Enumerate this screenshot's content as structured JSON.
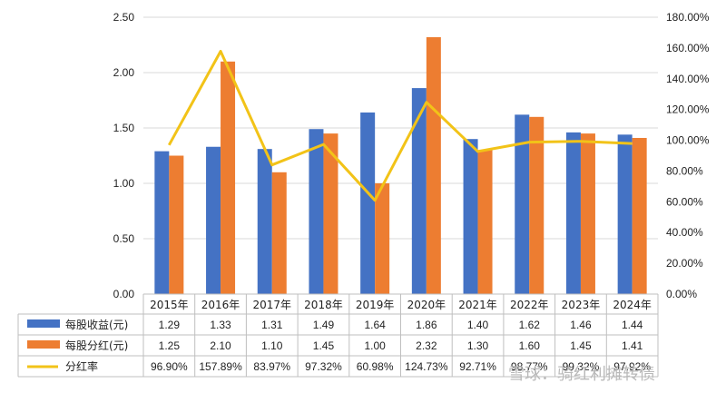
{
  "chart_data": {
    "type": "bar",
    "categories": [
      "2015年",
      "2016年",
      "2017年",
      "2018年",
      "2019年",
      "2020年",
      "2021年",
      "2022年",
      "2023年",
      "2024年"
    ],
    "series": [
      {
        "name": "每股收益(元)",
        "type": "bar",
        "axis": "left",
        "color": "#4472C4",
        "values": [
          1.29,
          1.33,
          1.31,
          1.49,
          1.64,
          1.86,
          1.4,
          1.62,
          1.46,
          1.44
        ],
        "labels": [
          "1.29",
          "1.33",
          "1.31",
          "1.49",
          "1.64",
          "1.86",
          "1.40",
          "1.62",
          "1.46",
          "1.44"
        ]
      },
      {
        "name": "每股分红(元)",
        "type": "bar",
        "axis": "left",
        "color": "#ED7D31",
        "values": [
          1.25,
          2.1,
          1.1,
          1.45,
          1.0,
          2.32,
          1.3,
          1.6,
          1.45,
          1.41
        ],
        "labels": [
          "1.25",
          "2.10",
          "1.10",
          "1.45",
          "1.00",
          "2.32",
          "1.30",
          "1.60",
          "1.45",
          "1.41"
        ]
      },
      {
        "name": "分红率",
        "type": "line",
        "axis": "right",
        "color": "#F2C318",
        "values": [
          96.9,
          157.89,
          83.97,
          97.32,
          60.98,
          124.73,
          92.71,
          98.77,
          99.32,
          97.92
        ],
        "labels": [
          "96.90%",
          "157.89%",
          "83.97%",
          "97.32%",
          "60.98%",
          "124.73%",
          "92.71%",
          "98.77%",
          "99.32%",
          "97.92%"
        ]
      }
    ],
    "y_left": {
      "min": 0,
      "max": 2.5,
      "ticks": [
        "0.00",
        "0.50",
        "1.00",
        "1.50",
        "2.00",
        "2.50"
      ]
    },
    "y_right": {
      "min": 0,
      "max": 180,
      "ticks": [
        "0.00%",
        "20.00%",
        "40.00%",
        "60.00%",
        "80.00%",
        "100.00%",
        "120.00%",
        "140.00%",
        "160.00%",
        "180.00%"
      ]
    },
    "grid": true,
    "legend": "data-table-below"
  },
  "watermark": "雪球：骑红利摊转债",
  "colors": {
    "grid": "#d9d9d9",
    "table_border": "#bfbfbf"
  }
}
